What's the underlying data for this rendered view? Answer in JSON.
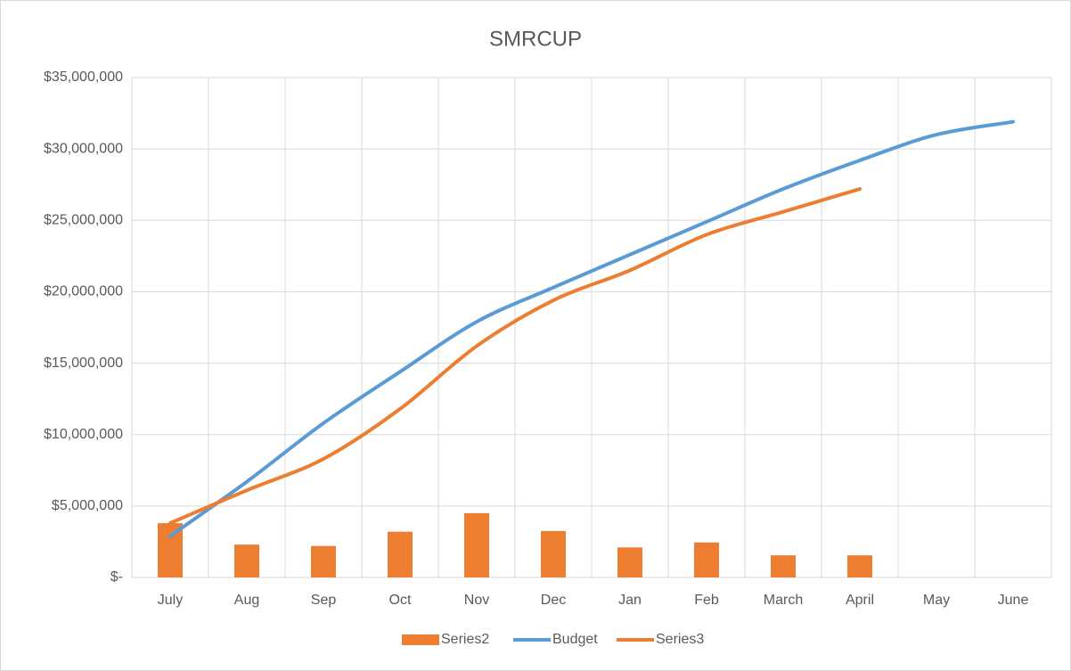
{
  "chart_data": {
    "type": "combo",
    "title": "SMRCUP",
    "categories": [
      "July",
      "Aug",
      "Sep",
      "Oct",
      "Nov",
      "Dec",
      "Jan",
      "Feb",
      "March",
      "April",
      "May",
      "June"
    ],
    "series": [
      {
        "name": "Series2",
        "type": "bar",
        "color": "#ed7d31",
        "values": [
          3800000,
          2300000,
          2200000,
          3200000,
          4500000,
          3250000,
          2100000,
          2450000,
          1550000,
          1550000,
          null,
          null
        ]
      },
      {
        "name": "Budget",
        "type": "line",
        "color": "#5b9bd5",
        "values": [
          2900000,
          6700000,
          10800000,
          14400000,
          17900000,
          20300000,
          22600000,
          24900000,
          27200000,
          29200000,
          31000000,
          31900000
        ]
      },
      {
        "name": "Series3",
        "type": "line",
        "color": "#ed7d31",
        "values": [
          3800000,
          6100000,
          8300000,
          11800000,
          16200000,
          19400000,
          21500000,
          24000000,
          25600000,
          27200000,
          null,
          null
        ]
      }
    ],
    "ylim": [
      0,
      35000000
    ],
    "yticks": [
      {
        "value": 0,
        "label": "$-"
      },
      {
        "value": 5000000,
        "label": "$5,000,000"
      },
      {
        "value": 10000000,
        "label": "$10,000,000"
      },
      {
        "value": 15000000,
        "label": "$15,000,000"
      },
      {
        "value": 20000000,
        "label": "$20,000,000"
      },
      {
        "value": 25000000,
        "label": "$25,000,000"
      },
      {
        "value": 30000000,
        "label": "$30,000,000"
      },
      {
        "value": 35000000,
        "label": "$35,000,000"
      }
    ],
    "grid": true,
    "legend": "bottom"
  }
}
